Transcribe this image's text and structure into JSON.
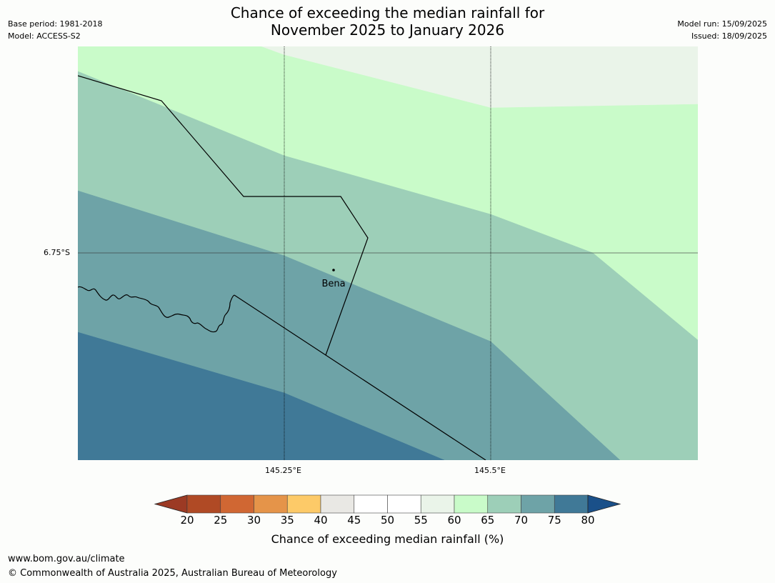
{
  "header": {
    "title_line1": "Chance of exceeding the median rainfall for",
    "title_line2": "November 2025 to January 2026",
    "base_period": "Base period: 1981-2018",
    "model": "Model: ACCESS-S2",
    "model_run": "Model run: 15/09/2025",
    "issued": "Issued: 18/09/2025"
  },
  "map": {
    "lat_label": "6.75°S",
    "lon_labels": [
      "145.25°E",
      "145.5°E"
    ],
    "place_label": "Bena",
    "zones": [
      {
        "range": "55-60",
        "color": "#eaf4e9"
      },
      {
        "range": "60-65",
        "color": "#c9fbc9"
      },
      {
        "range": "65-70",
        "color": "#9dcfb8"
      },
      {
        "range": "70-75",
        "color": "#6ea3a7"
      },
      {
        "range": "75-80",
        "color": "#407997"
      }
    ]
  },
  "colorbar": {
    "label": "Chance of exceeding median rainfall (%)",
    "ticks": [
      "20",
      "25",
      "30",
      "35",
      "40",
      "45",
      "50",
      "55",
      "60",
      "65",
      "70",
      "75",
      "80"
    ],
    "colors": [
      "#9c3a24",
      "#b04a25",
      "#d06733",
      "#e59449",
      "#fdca68",
      "#e9e8e4",
      "#ffffff",
      "#ffffff",
      "#eaf4e9",
      "#c9fbc9",
      "#9dcfb8",
      "#6ea3a7",
      "#407997",
      "#1a5089"
    ]
  },
  "footer": {
    "url": "www.bom.gov.au/climate",
    "copyright": "© Commonwealth of Australia 2025, Australian Bureau of Meteorology"
  }
}
